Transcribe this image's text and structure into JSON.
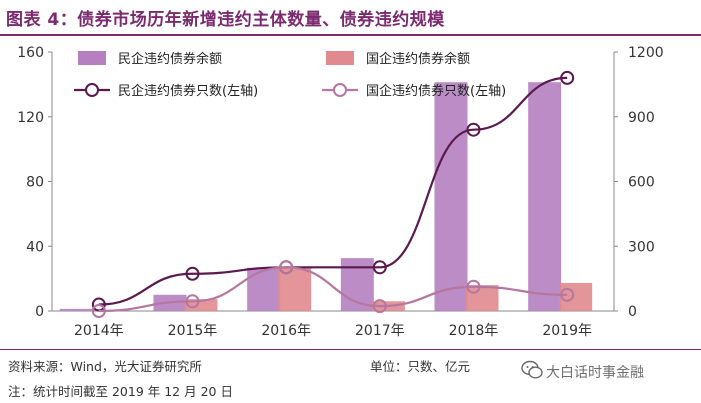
{
  "header": {
    "title": "图表 4：债券市场历年新增违约主体数量、债券违约规模"
  },
  "chart_data": {
    "type": "bar",
    "categories": [
      "2014年",
      "2015年",
      "2016年",
      "2017年",
      "2018年",
      "2019年"
    ],
    "left_axis": {
      "ylim": [
        0,
        160
      ],
      "ticks": [
        "0",
        "40",
        "80",
        "120",
        "160"
      ]
    },
    "right_axis": {
      "ylim": [
        0,
        1200
      ],
      "ticks": [
        "0",
        "300",
        "600",
        "900",
        "1200"
      ]
    },
    "series": [
      {
        "name": "民企违约债券余额",
        "type": "bar",
        "axis": "right",
        "color": "#b57fc0",
        "values": [
          10,
          75,
          200,
          245,
          1060,
          1060
        ]
      },
      {
        "name": "国企违约债券余额",
        "type": "bar",
        "axis": "right",
        "color": "#e08a8f",
        "values": [
          5,
          55,
          200,
          45,
          120,
          130
        ]
      },
      {
        "name": "民企违约债券只数(左轴)",
        "type": "line",
        "axis": "left",
        "color": "#5a1a4e",
        "values": [
          4,
          23,
          27,
          27,
          112,
          144
        ]
      },
      {
        "name": "国企违约债券只数(左轴)",
        "type": "line",
        "axis": "left",
        "color": "#b5779f",
        "values": [
          0,
          6,
          27,
          3,
          15,
          10
        ]
      }
    ],
    "legend_position": "top-left",
    "grid": false
  },
  "notes": {
    "source": "资料来源：Wind，光大证券研究所",
    "unit": "单位：只数、亿元",
    "footnote": "注：统计时间截至 2019 年 12 月 20 日"
  },
  "watermark": {
    "text": "大白话时事金融",
    "icon": "wechat-icon"
  }
}
